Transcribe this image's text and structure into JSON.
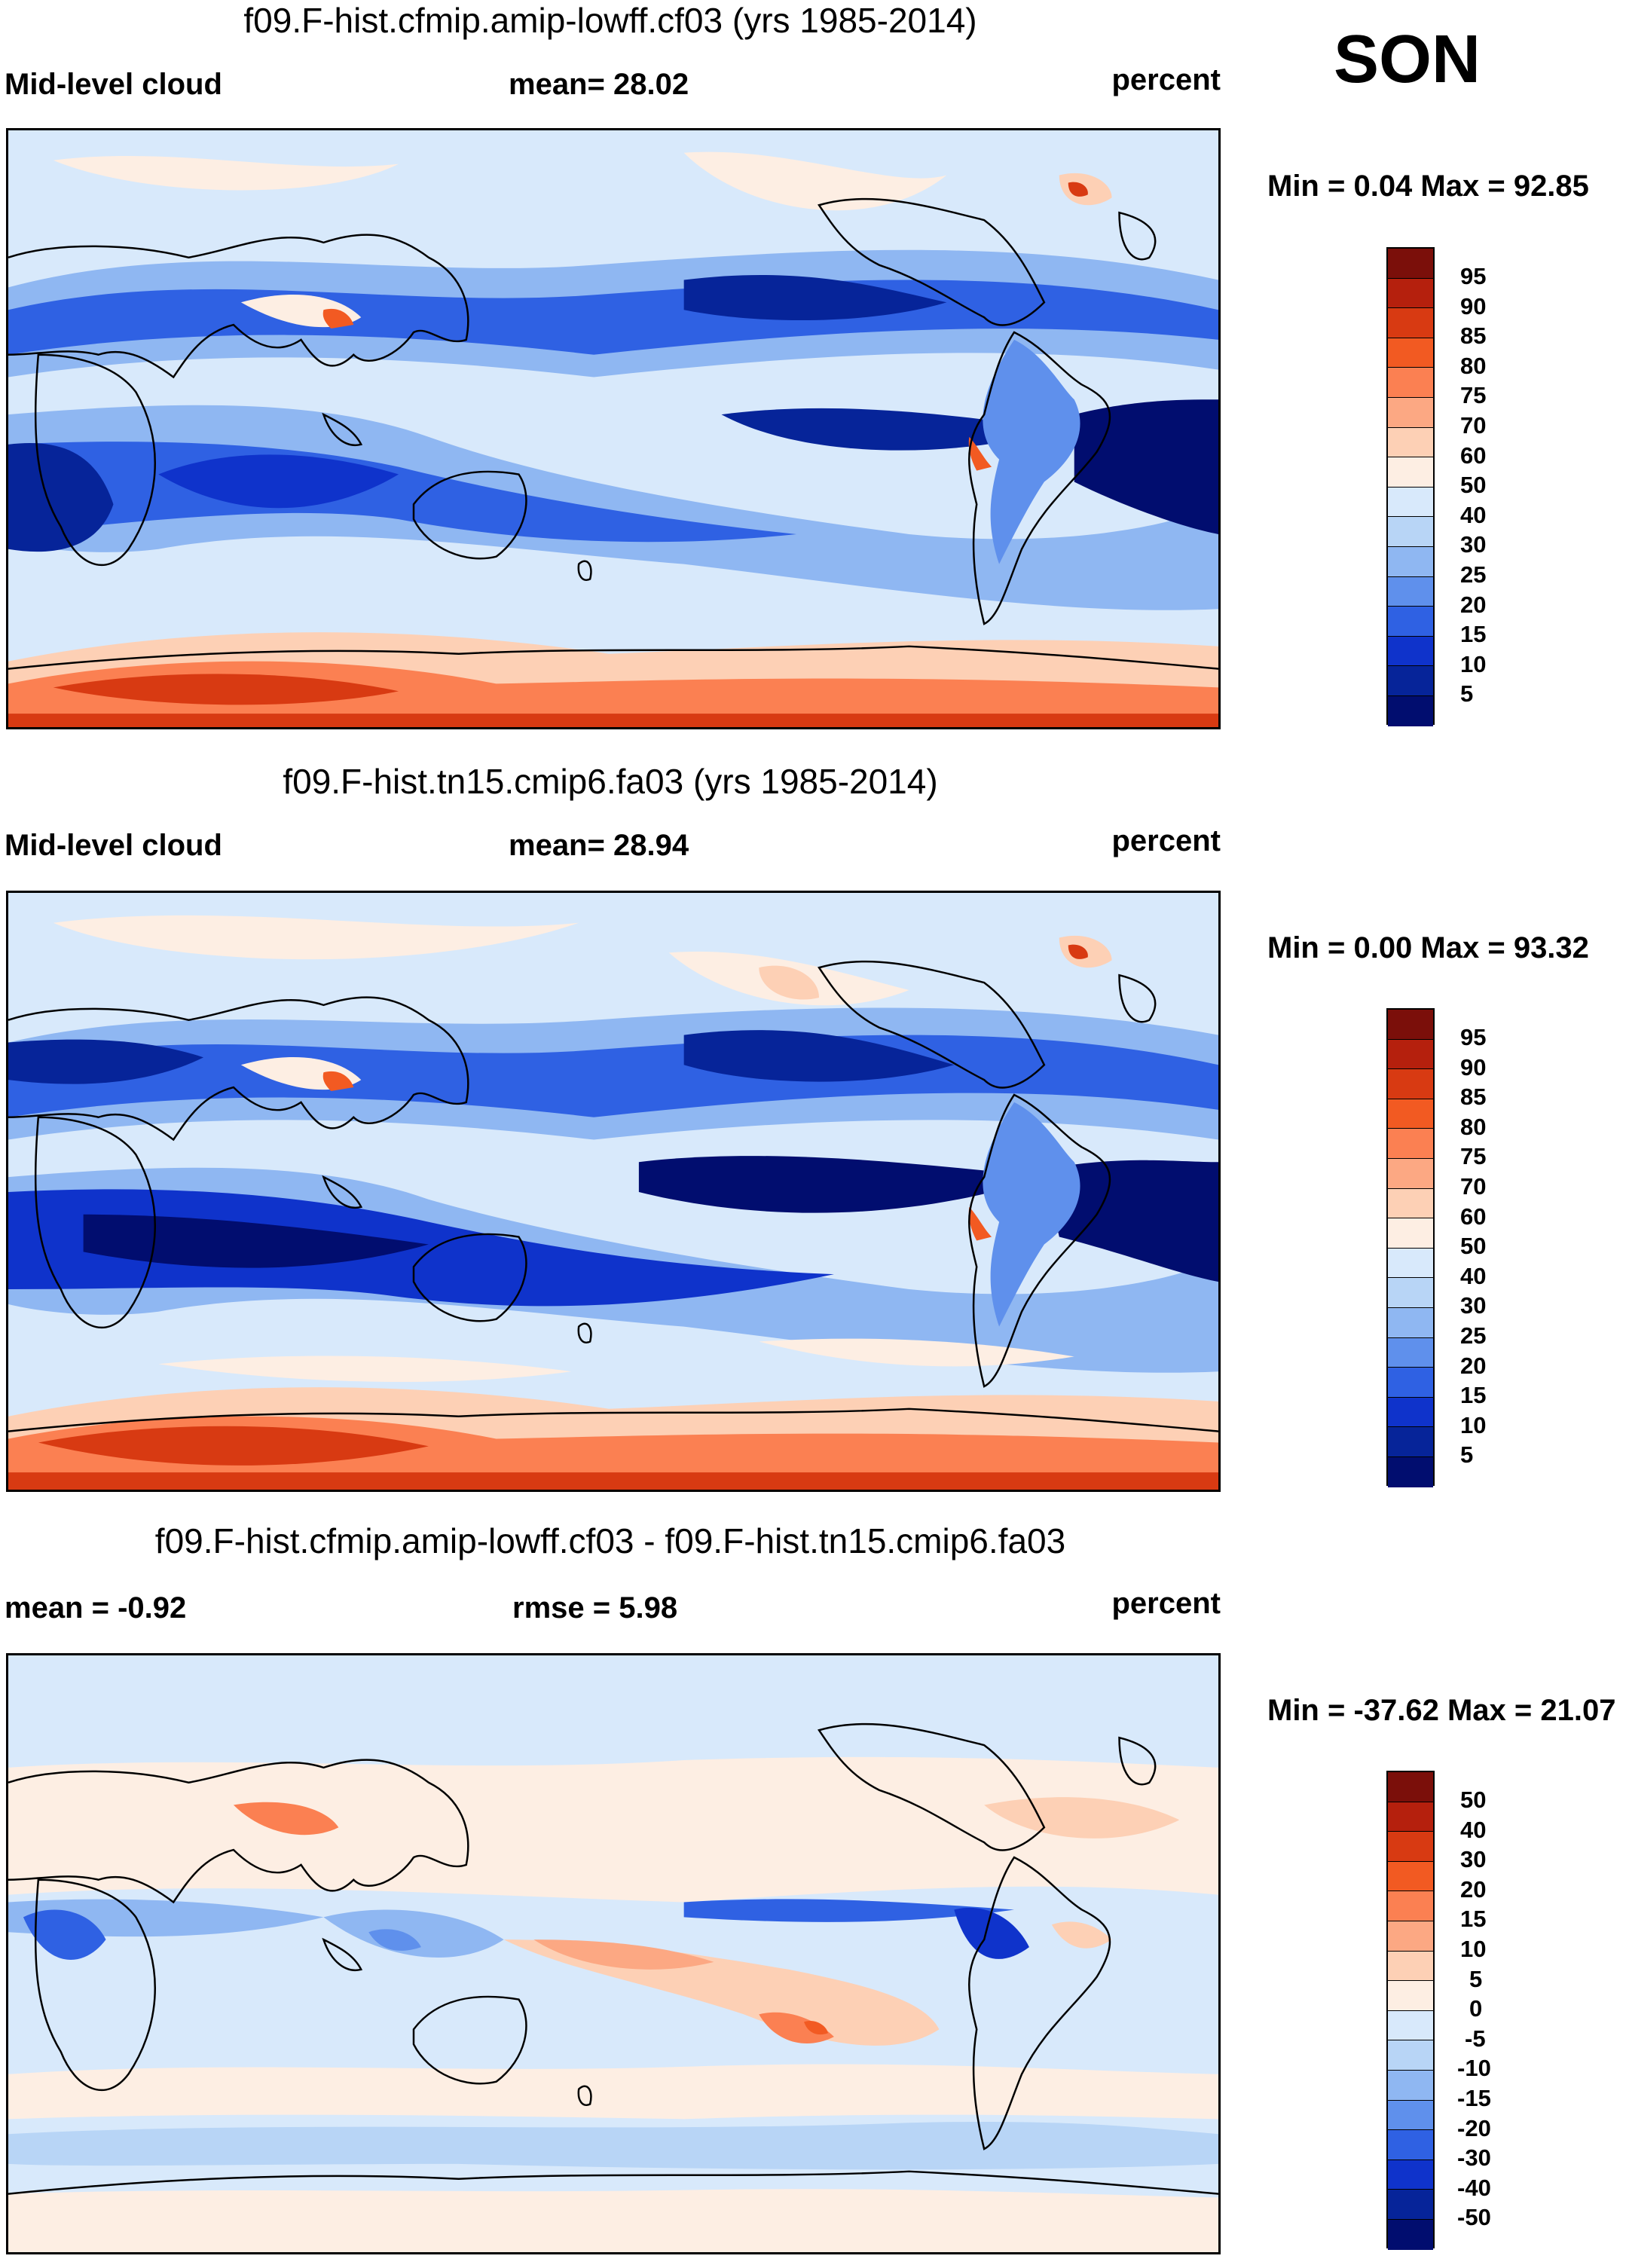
{
  "season": "SON",
  "panels": [
    {
      "title": "f09.F-hist.cfmip.amip-lowff.cf03 (yrs 1985-2014)",
      "left_label": "Mid-level cloud",
      "center_label": "mean=  28.02",
      "right_label": "percent",
      "minmax": "Min =   0.04 Max =  92.85"
    },
    {
      "title": "f09.F-hist.tn15.cmip6.fa03 (yrs 1985-2014)",
      "left_label": "Mid-level cloud",
      "center_label": "mean=  28.94",
      "right_label": "percent",
      "minmax": "Min =   0.00 Max =  93.32"
    },
    {
      "title": "f09.F-hist.cfmip.amip-lowff.cf03 - f09.F-hist.tn15.cmip6.fa03",
      "left_label": "mean =  -0.92",
      "center_label": "rmse =    5.98",
      "right_label": "percent",
      "minmax": "Min = -37.62 Max =  21.07"
    }
  ],
  "colorbars": {
    "cloud": {
      "labels": [
        "95",
        "90",
        "85",
        "80",
        "75",
        "70",
        "60",
        "50",
        "40",
        "30",
        "25",
        "20",
        "15",
        "10",
        "5"
      ],
      "colors": [
        "#7b0f0a",
        "#b5200d",
        "#d83a12",
        "#f25a22",
        "#fb8052",
        "#fca883",
        "#fdd0b5",
        "#fdeee3",
        "#d8e9fb",
        "#b8d5f6",
        "#8fb7f2",
        "#5f90ec",
        "#2f61e3",
        "#0f33cb",
        "#062499",
        "#010d6f"
      ]
    },
    "diff": {
      "labels": [
        "50",
        "40",
        "30",
        "20",
        "15",
        "10",
        "5",
        "0",
        "-5",
        "-10",
        "-15",
        "-20",
        "-30",
        "-40",
        "-50"
      ],
      "colors": [
        "#7b0f0a",
        "#b5200d",
        "#d83a12",
        "#f25a22",
        "#fb8052",
        "#fca883",
        "#fdd0b5",
        "#fdeee3",
        "#d8e9fb",
        "#b8d5f6",
        "#8fb7f2",
        "#5f90ec",
        "#2f61e3",
        "#0f33cb",
        "#062499",
        "#010d6f"
      ]
    }
  }
}
